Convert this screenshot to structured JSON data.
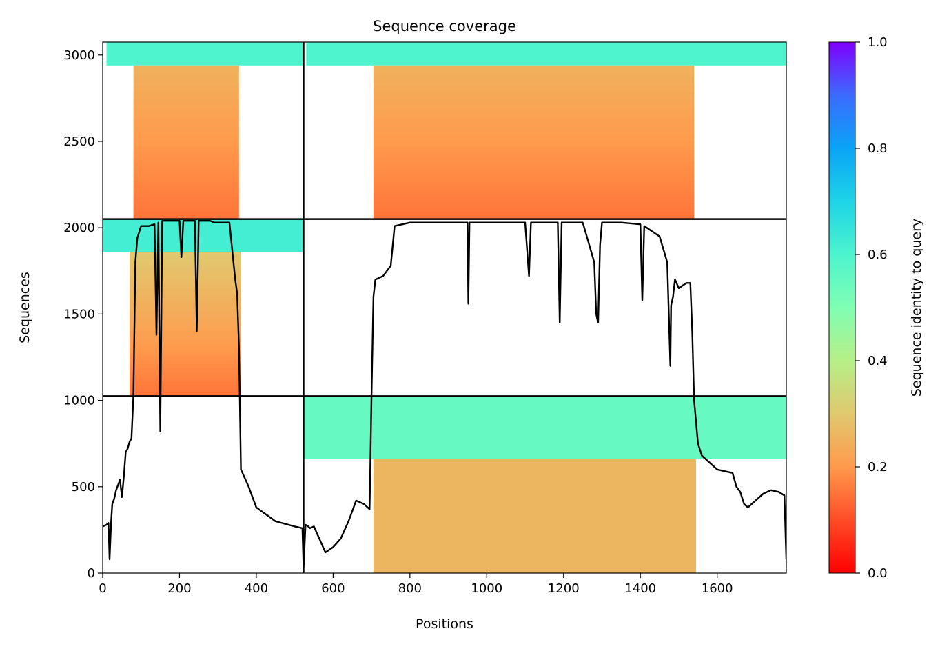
{
  "chart_data": {
    "type": "heatmap",
    "title": "Sequence coverage",
    "xlabel": "Positions",
    "ylabel": "Sequences",
    "xlim": [
      0,
      1780
    ],
    "ylim": [
      0,
      3075
    ],
    "x_ticks": [
      0,
      200,
      400,
      600,
      800,
      1000,
      1200,
      1400,
      1600
    ],
    "y_ticks": [
      0,
      500,
      1000,
      1500,
      2000,
      2500,
      3000
    ],
    "segment_boundaries_x": [
      523
    ],
    "segment_boundaries_y": [
      1025,
      2050
    ],
    "colorbar": {
      "label": "Sequence identity to query",
      "range": [
        0,
        1
      ],
      "ticks": [
        "0.0",
        "0.2",
        "0.4",
        "0.6",
        "0.8",
        "1.0"
      ],
      "colormap": "rainbow_r"
    },
    "blocks": [
      {
        "name": "top-left",
        "x0": 0,
        "x1": 523,
        "y0": 2050,
        "y1": 3075,
        "high_id_band": {
          "y0": 2940,
          "y1": 3075,
          "x0": 10,
          "x1": 523,
          "identity": 0.6
        },
        "body": {
          "y0": 2050,
          "y1": 2940,
          "x_start": 80,
          "x_end": 355,
          "identity_bottom": 0.15,
          "identity_top": 0.25
        }
      },
      {
        "name": "top-right",
        "x0": 523,
        "x1": 1780,
        "y0": 2050,
        "y1": 3075,
        "high_id_band": {
          "y0": 2940,
          "y1": 3075,
          "x0": 530,
          "x1": 1780,
          "identity": 0.6
        },
        "body": {
          "y0": 2050,
          "y1": 2940,
          "x_start": 705,
          "x_end": 1540,
          "identity_bottom": 0.15,
          "identity_top": 0.25
        }
      },
      {
        "name": "middle-left",
        "x0": 0,
        "x1": 523,
        "y0": 1025,
        "y1": 2050,
        "high_id_band": {
          "y0": 1860,
          "y1": 2050,
          "x0": 0,
          "x1": 523,
          "identity": 0.62
        },
        "body": {
          "y0": 1025,
          "y1": 1860,
          "x_start": 70,
          "x_end": 360,
          "identity_bottom": 0.15,
          "identity_top": 0.3
        }
      },
      {
        "name": "bottom-right",
        "x0": 523,
        "x1": 1780,
        "y0": 0,
        "y1": 1025,
        "high_id_band": {
          "y0": 660,
          "y1": 1025,
          "x0": 523,
          "x1": 1780,
          "identity": 0.55
        },
        "body": {
          "y0": 0,
          "y1": 660,
          "x_start": 705,
          "x_end": 1545,
          "identity_bottom": 0.26,
          "identity_top": 0.26
        }
      }
    ],
    "coverage_line": {
      "color": "#000000",
      "x": [
        0,
        10,
        15,
        18,
        22,
        25,
        30,
        35,
        40,
        45,
        50,
        55,
        60,
        65,
        70,
        75,
        80,
        85,
        90,
        100,
        120,
        135,
        140,
        145,
        150,
        155,
        160,
        180,
        200,
        205,
        210,
        230,
        240,
        245,
        250,
        270,
        280,
        290,
        310,
        330,
        345,
        350,
        355,
        360,
        380,
        400,
        450,
        500,
        520,
        523,
        528,
        535,
        540,
        550,
        580,
        600,
        620,
        640,
        660,
        680,
        695,
        700,
        705,
        710,
        730,
        750,
        760,
        780,
        800,
        850,
        900,
        950,
        952,
        955,
        1000,
        1100,
        1110,
        1115,
        1150,
        1185,
        1190,
        1195,
        1250,
        1280,
        1285,
        1290,
        1295,
        1300,
        1350,
        1400,
        1405,
        1410,
        1450,
        1470,
        1478,
        1480,
        1485,
        1490,
        1500,
        1520,
        1530,
        1535,
        1540,
        1550,
        1560,
        1580,
        1600,
        1640,
        1650,
        1660,
        1670,
        1680,
        1700,
        1720,
        1740,
        1760,
        1775,
        1780
      ],
      "y": [
        270,
        280,
        290,
        80,
        300,
        400,
        430,
        480,
        510,
        540,
        440,
        560,
        700,
        720,
        760,
        780,
        1030,
        1800,
        1940,
        2010,
        2010,
        2020,
        1380,
        2030,
        820,
        2040,
        2040,
        2040,
        2040,
        1830,
        2040,
        2040,
        2040,
        1400,
        2040,
        2040,
        2040,
        2030,
        2030,
        2030,
        1700,
        1620,
        1300,
        600,
        500,
        380,
        300,
        270,
        260,
        30,
        280,
        270,
        260,
        270,
        120,
        150,
        200,
        300,
        420,
        400,
        370,
        1030,
        1600,
        1700,
        1720,
        1780,
        2010,
        2020,
        2030,
        2030,
        2030,
        2030,
        1560,
        2030,
        2030,
        2030,
        1720,
        2030,
        2030,
        2030,
        1450,
        2030,
        2030,
        1800,
        1500,
        1450,
        1900,
        2030,
        2030,
        2020,
        1580,
        2010,
        1950,
        1800,
        1200,
        1550,
        1600,
        1700,
        1650,
        1680,
        1680,
        1400,
        1000,
        750,
        680,
        640,
        600,
        580,
        500,
        470,
        400,
        380,
        420,
        460,
        480,
        470,
        450,
        80
      ]
    }
  }
}
